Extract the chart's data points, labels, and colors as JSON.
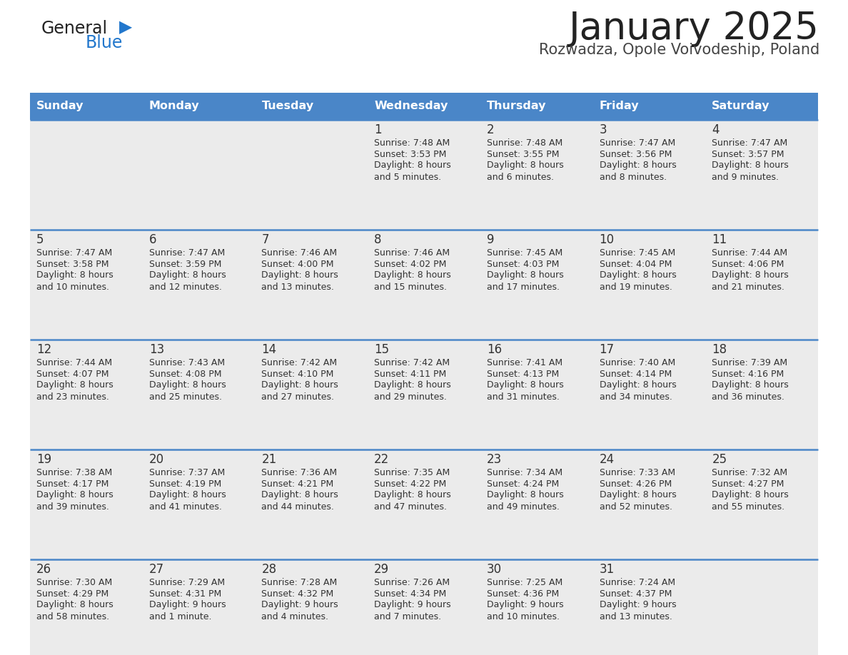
{
  "title": "January 2025",
  "subtitle": "Rozwadza, Opole Voivodeship, Poland",
  "days_of_week": [
    "Sunday",
    "Monday",
    "Tuesday",
    "Wednesday",
    "Thursday",
    "Friday",
    "Saturday"
  ],
  "header_bg": "#4a86c8",
  "header_text": "#ffffff",
  "row_bg_light": "#ebebeb",
  "cell_text_color": "#333333",
  "day_num_color": "#333333",
  "divider_color": "#4a86c8",
  "title_color": "#222222",
  "subtitle_color": "#444444",
  "logo_general_color": "#222222",
  "logo_blue_color": "#2277cc",
  "calendar_data": [
    [
      {
        "day": "",
        "sunrise": "",
        "sunset": "",
        "daylight": ""
      },
      {
        "day": "",
        "sunrise": "",
        "sunset": "",
        "daylight": ""
      },
      {
        "day": "",
        "sunrise": "",
        "sunset": "",
        "daylight": ""
      },
      {
        "day": "1",
        "sunrise": "7:48 AM",
        "sunset": "3:53 PM",
        "daylight": "8 hours",
        "daylight2": "and 5 minutes."
      },
      {
        "day": "2",
        "sunrise": "7:48 AM",
        "sunset": "3:55 PM",
        "daylight": "8 hours",
        "daylight2": "and 6 minutes."
      },
      {
        "day": "3",
        "sunrise": "7:47 AM",
        "sunset": "3:56 PM",
        "daylight": "8 hours",
        "daylight2": "and 8 minutes."
      },
      {
        "day": "4",
        "sunrise": "7:47 AM",
        "sunset": "3:57 PM",
        "daylight": "8 hours",
        "daylight2": "and 9 minutes."
      }
    ],
    [
      {
        "day": "5",
        "sunrise": "7:47 AM",
        "sunset": "3:58 PM",
        "daylight": "8 hours",
        "daylight2": "and 10 minutes."
      },
      {
        "day": "6",
        "sunrise": "7:47 AM",
        "sunset": "3:59 PM",
        "daylight": "8 hours",
        "daylight2": "and 12 minutes."
      },
      {
        "day": "7",
        "sunrise": "7:46 AM",
        "sunset": "4:00 PM",
        "daylight": "8 hours",
        "daylight2": "and 13 minutes."
      },
      {
        "day": "8",
        "sunrise": "7:46 AM",
        "sunset": "4:02 PM",
        "daylight": "8 hours",
        "daylight2": "and 15 minutes."
      },
      {
        "day": "9",
        "sunrise": "7:45 AM",
        "sunset": "4:03 PM",
        "daylight": "8 hours",
        "daylight2": "and 17 minutes."
      },
      {
        "day": "10",
        "sunrise": "7:45 AM",
        "sunset": "4:04 PM",
        "daylight": "8 hours",
        "daylight2": "and 19 minutes."
      },
      {
        "day": "11",
        "sunrise": "7:44 AM",
        "sunset": "4:06 PM",
        "daylight": "8 hours",
        "daylight2": "and 21 minutes."
      }
    ],
    [
      {
        "day": "12",
        "sunrise": "7:44 AM",
        "sunset": "4:07 PM",
        "daylight": "8 hours",
        "daylight2": "and 23 minutes."
      },
      {
        "day": "13",
        "sunrise": "7:43 AM",
        "sunset": "4:08 PM",
        "daylight": "8 hours",
        "daylight2": "and 25 minutes."
      },
      {
        "day": "14",
        "sunrise": "7:42 AM",
        "sunset": "4:10 PM",
        "daylight": "8 hours",
        "daylight2": "and 27 minutes."
      },
      {
        "day": "15",
        "sunrise": "7:42 AM",
        "sunset": "4:11 PM",
        "daylight": "8 hours",
        "daylight2": "and 29 minutes."
      },
      {
        "day": "16",
        "sunrise": "7:41 AM",
        "sunset": "4:13 PM",
        "daylight": "8 hours",
        "daylight2": "and 31 minutes."
      },
      {
        "day": "17",
        "sunrise": "7:40 AM",
        "sunset": "4:14 PM",
        "daylight": "8 hours",
        "daylight2": "and 34 minutes."
      },
      {
        "day": "18",
        "sunrise": "7:39 AM",
        "sunset": "4:16 PM",
        "daylight": "8 hours",
        "daylight2": "and 36 minutes."
      }
    ],
    [
      {
        "day": "19",
        "sunrise": "7:38 AM",
        "sunset": "4:17 PM",
        "daylight": "8 hours",
        "daylight2": "and 39 minutes."
      },
      {
        "day": "20",
        "sunrise": "7:37 AM",
        "sunset": "4:19 PM",
        "daylight": "8 hours",
        "daylight2": "and 41 minutes."
      },
      {
        "day": "21",
        "sunrise": "7:36 AM",
        "sunset": "4:21 PM",
        "daylight": "8 hours",
        "daylight2": "and 44 minutes."
      },
      {
        "day": "22",
        "sunrise": "7:35 AM",
        "sunset": "4:22 PM",
        "daylight": "8 hours",
        "daylight2": "and 47 minutes."
      },
      {
        "day": "23",
        "sunrise": "7:34 AM",
        "sunset": "4:24 PM",
        "daylight": "8 hours",
        "daylight2": "and 49 minutes."
      },
      {
        "day": "24",
        "sunrise": "7:33 AM",
        "sunset": "4:26 PM",
        "daylight": "8 hours",
        "daylight2": "and 52 minutes."
      },
      {
        "day": "25",
        "sunrise": "7:32 AM",
        "sunset": "4:27 PM",
        "daylight": "8 hours",
        "daylight2": "and 55 minutes."
      }
    ],
    [
      {
        "day": "26",
        "sunrise": "7:30 AM",
        "sunset": "4:29 PM",
        "daylight": "8 hours",
        "daylight2": "and 58 minutes."
      },
      {
        "day": "27",
        "sunrise": "7:29 AM",
        "sunset": "4:31 PM",
        "daylight": "9 hours",
        "daylight2": "and 1 minute."
      },
      {
        "day": "28",
        "sunrise": "7:28 AM",
        "sunset": "4:32 PM",
        "daylight": "9 hours",
        "daylight2": "and 4 minutes."
      },
      {
        "day": "29",
        "sunrise": "7:26 AM",
        "sunset": "4:34 PM",
        "daylight": "9 hours",
        "daylight2": "and 7 minutes."
      },
      {
        "day": "30",
        "sunrise": "7:25 AM",
        "sunset": "4:36 PM",
        "daylight": "9 hours",
        "daylight2": "and 10 minutes."
      },
      {
        "day": "31",
        "sunrise": "7:24 AM",
        "sunset": "4:37 PM",
        "daylight": "9 hours",
        "daylight2": "and 13 minutes."
      },
      {
        "day": "",
        "sunrise": "",
        "sunset": "",
        "daylight": "",
        "daylight2": ""
      }
    ]
  ]
}
